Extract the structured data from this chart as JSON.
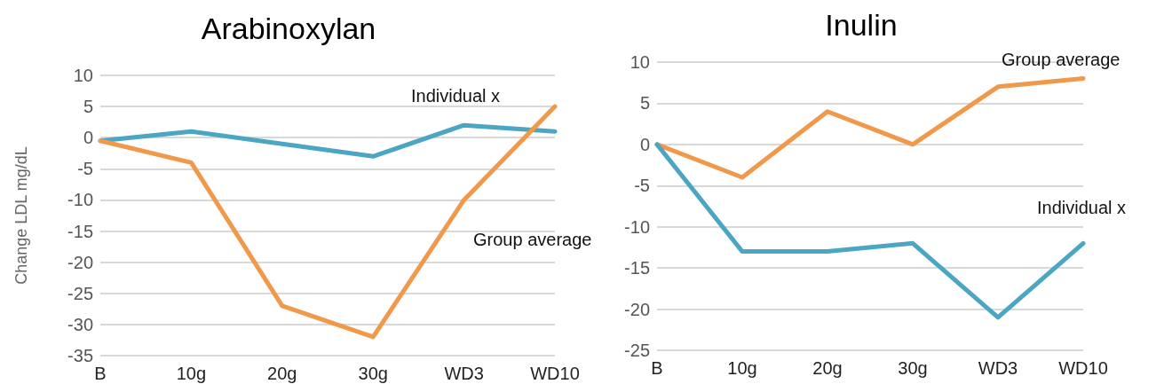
{
  "chart_data": [
    {
      "type": "line",
      "title": "Arabinoxylan",
      "ylabel": "Change LDL mg/dL",
      "categories": [
        "B",
        "10g",
        "20g",
        "30g",
        "WD3",
        "WD10"
      ],
      "series": [
        {
          "name": "Individual x",
          "color": "#4aa6c3",
          "values": [
            -0.5,
            1,
            -1,
            -3,
            2,
            1
          ]
        },
        {
          "name": "Group average",
          "color": "#f0994a",
          "values": [
            -0.5,
            -4,
            -27,
            -32,
            -10,
            5
          ]
        }
      ],
      "ylim": [
        -35,
        10
      ],
      "yticks": [
        -35,
        -30,
        -25,
        -20,
        -15,
        -10,
        -5,
        0,
        5,
        10
      ],
      "grid": "y",
      "legend": false,
      "marker": "none",
      "line_style": "solid"
    },
    {
      "type": "line",
      "title": "Inulin",
      "categories": [
        "B",
        "10g",
        "20g",
        "30g",
        "WD3",
        "WD10"
      ],
      "series": [
        {
          "name": "Group average",
          "color": "#f0994a",
          "values": [
            0,
            -4,
            4,
            0,
            7,
            8
          ]
        },
        {
          "name": "Individual x",
          "color": "#4aa6c3",
          "values": [
            0,
            -13,
            -13,
            -12,
            -21,
            -12
          ]
        }
      ],
      "ylim": [
        -25,
        10
      ],
      "yticks": [
        -25,
        -20,
        -15,
        -10,
        -5,
        0,
        5,
        10
      ],
      "grid": "y",
      "legend": false,
      "marker": "none",
      "line_style": "solid"
    }
  ]
}
